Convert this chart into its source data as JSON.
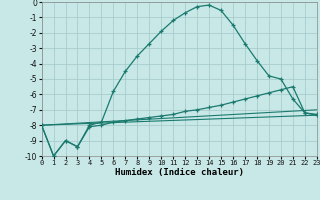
{
  "xlabel": "Humidex (Indice chaleur)",
  "background_color": "#c8e8e8",
  "grid_color": "#a8cccc",
  "line_color": "#1a7a6e",
  "xlim": [
    0,
    23
  ],
  "ylim": [
    -10,
    0
  ],
  "xticks": [
    0,
    1,
    2,
    3,
    4,
    5,
    6,
    7,
    8,
    9,
    10,
    11,
    12,
    13,
    14,
    15,
    16,
    17,
    18,
    19,
    20,
    21,
    22,
    23
  ],
  "yticks": [
    0,
    -1,
    -2,
    -3,
    -4,
    -5,
    -6,
    -7,
    -8,
    -9,
    -10
  ],
  "curve1_x": [
    0,
    1,
    2,
    3,
    4,
    5,
    6,
    7,
    8,
    9,
    10,
    11,
    12,
    13,
    14,
    15,
    16,
    17,
    18,
    19,
    20,
    21,
    22,
    23
  ],
  "curve1_y": [
    -8.0,
    -10.0,
    -9.0,
    -9.4,
    -8.0,
    -7.8,
    -5.8,
    -4.5,
    -3.5,
    -2.7,
    -1.9,
    -1.2,
    -0.7,
    -0.3,
    -0.2,
    -0.55,
    -1.5,
    -2.7,
    -3.8,
    -4.8,
    -5.0,
    -6.3,
    -7.2,
    -7.3
  ],
  "curve2_x": [
    0,
    1,
    2,
    3,
    4,
    5,
    6,
    7,
    8,
    9,
    10,
    11,
    12,
    13,
    14,
    15,
    16,
    17,
    18,
    19,
    20,
    21,
    22,
    23
  ],
  "curve2_y": [
    -8.0,
    -10.0,
    -9.0,
    -9.4,
    -8.1,
    -8.0,
    -7.8,
    -7.7,
    -7.6,
    -7.5,
    -7.4,
    -7.3,
    -7.1,
    -7.0,
    -6.85,
    -6.7,
    -6.5,
    -6.3,
    -6.1,
    -5.9,
    -5.7,
    -5.5,
    -7.2,
    -7.35
  ],
  "line1_x": [
    0,
    23
  ],
  "line1_y": [
    -8.0,
    -7.0
  ],
  "line2_x": [
    0,
    23
  ],
  "line2_y": [
    -8.0,
    -7.35
  ]
}
